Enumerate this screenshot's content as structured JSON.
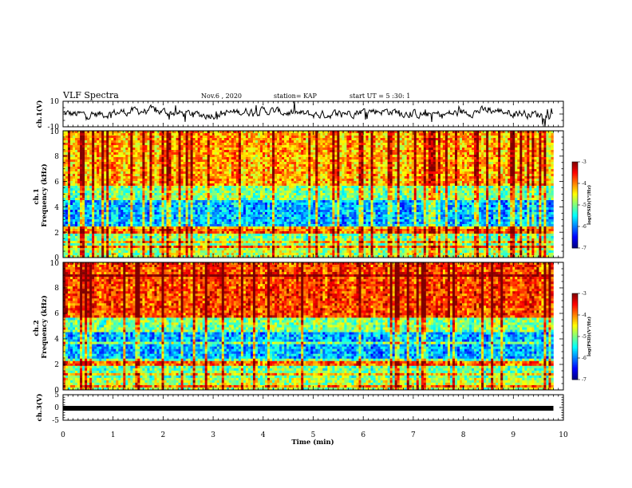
{
  "header": {
    "title": "VLF Spectra",
    "date": "Nov.6 , 2020",
    "station": "station= KAP",
    "start": "start UT = 5 :30: 1"
  },
  "chart_data": [
    {
      "type": "line",
      "panel": "ch1-waveform",
      "ylabel": "ch.1(V)",
      "ylim": [
        -10,
        10
      ],
      "ytick_labels": [
        "10",
        "-10"
      ],
      "xlim": [
        0,
        10
      ],
      "data_extent_min": 9.8,
      "grid": false
    },
    {
      "type": "heatmap",
      "panel": "ch1-spectrogram",
      "ylabel": "ch.1\nFrequency (kHz)",
      "ylim": [
        0,
        10
      ],
      "ytick_labels": [
        "0",
        "2",
        "4",
        "6",
        "8",
        "10"
      ],
      "xlim": [
        0,
        10
      ],
      "colorbar": {
        "title": "log(PSD)(V²/Hz)",
        "range": [
          -7,
          -3
        ],
        "tick_labels": [
          "-3",
          "-4",
          "-5",
          "-6",
          "-7"
        ]
      }
    },
    {
      "type": "heatmap",
      "panel": "ch2-spectrogram",
      "ylabel": "ch.2\nFrequency (kHz)",
      "ylim": [
        0,
        10
      ],
      "ytick_labels": [
        "0",
        "2",
        "4",
        "6",
        "8",
        "10"
      ],
      "xlim": [
        0,
        10
      ],
      "colorbar": {
        "title": "log(PSD)(V²/Hz)",
        "range": [
          -7,
          -3
        ],
        "tick_labels": [
          "-3",
          "-4",
          "-5",
          "-6",
          "-7"
        ]
      }
    },
    {
      "type": "line",
      "panel": "ch3-waveform",
      "ylabel": "ch.3(V)",
      "ylim": [
        -5,
        5
      ],
      "ytick_labels": [
        "5",
        "0",
        "-5"
      ],
      "xlim": [
        0,
        10
      ],
      "level": -0.3,
      "xlabel": "Time (min)",
      "xtick_labels": [
        "0",
        "1",
        "2",
        "3",
        "4",
        "5",
        "6",
        "7",
        "8",
        "9",
        "10"
      ]
    }
  ]
}
